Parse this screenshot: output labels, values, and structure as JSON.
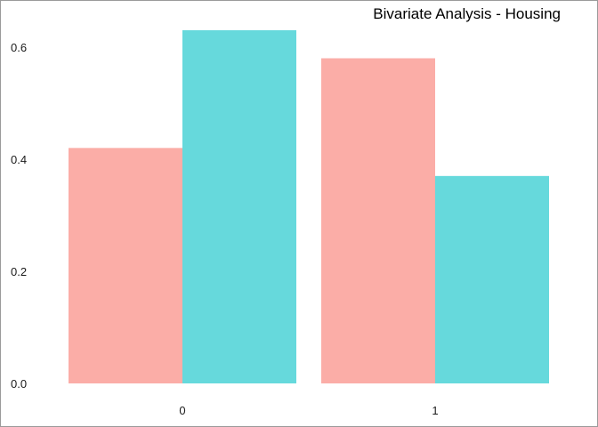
{
  "chart_data": {
    "type": "bar",
    "title": "Bivariate Analysis - Housing",
    "xlabel": "",
    "ylabel": "",
    "categories": [
      "0",
      "1"
    ],
    "series": [
      {
        "values": [
          0.42,
          0.58
        ],
        "color": "#F8766D"
      },
      {
        "values": [
          0.63,
          0.37
        ],
        "color": "#00BFC4"
      }
    ],
    "ylim": [
      0,
      0.63
    ],
    "yticks": [
      0.0,
      0.2,
      0.4,
      0.6
    ],
    "ytick_labels": [
      "0.0",
      "0.2",
      "0.4",
      "0.6"
    ],
    "grid": false,
    "legend": "none",
    "bar_fill_opacity": 0.6
  }
}
